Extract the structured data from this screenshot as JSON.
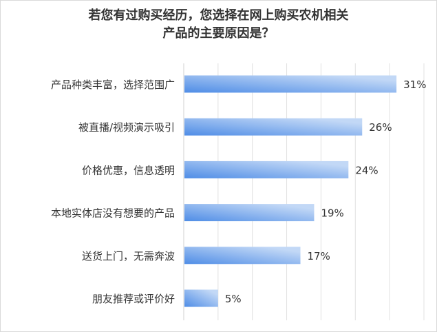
{
  "chart_data": {
    "type": "bar",
    "orientation": "horizontal",
    "title_lines": [
      "若您有过购买经历，您选择在网上购买农机相关",
      "产品的主要原因是？"
    ],
    "categories": [
      "产品种类丰富，选择范围广",
      "被直播/视频演示吸引",
      "价格优惠，信息透明",
      "本地实体店没有想要的产品",
      "送货上门，无需奔波",
      "朋友推荐或评价好"
    ],
    "values": [
      31,
      26,
      24,
      19,
      17,
      5
    ],
    "data_labels": [
      "31%",
      "26%",
      "24%",
      "19%",
      "17%",
      "5%"
    ],
    "xlim": [
      0,
      35
    ],
    "grid": true,
    "legend": "none",
    "colors": {
      "bar_start": "#4f8de6",
      "bar_end": "#c2d8f6",
      "grid": "#e0e0e0",
      "text": "#333333"
    }
  }
}
